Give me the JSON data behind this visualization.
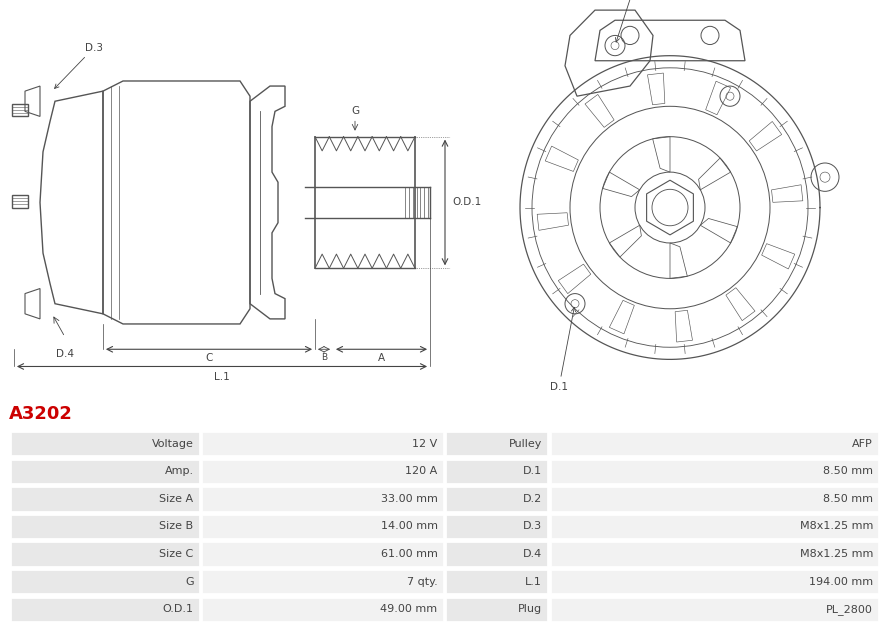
{
  "title": "A3202",
  "title_color": "#cc0000",
  "bg_color": "#ffffff",
  "table_row_bg1": "#e8e8e8",
  "table_row_bg2": "#f2f2f2",
  "table_border_color": "#ffffff",
  "rows": [
    [
      "Voltage",
      "12 V",
      "Pulley",
      "AFP"
    ],
    [
      "Amp.",
      "120 A",
      "D.1",
      "8.50 mm"
    ],
    [
      "Size A",
      "33.00 mm",
      "D.2",
      "8.50 mm"
    ],
    [
      "Size B",
      "14.00 mm",
      "D.3",
      "M8x1.25 mm"
    ],
    [
      "Size C",
      "61.00 mm",
      "D.4",
      "M8x1.25 mm"
    ],
    [
      "G",
      "7 qty.",
      "L.1",
      "194.00 mm"
    ],
    [
      "O.D.1",
      "49.00 mm",
      "Plug",
      "PL_2800"
    ]
  ],
  "font_size_title": 13,
  "font_size_table": 8.0,
  "gray": "#555555",
  "dim_color": "#444444"
}
